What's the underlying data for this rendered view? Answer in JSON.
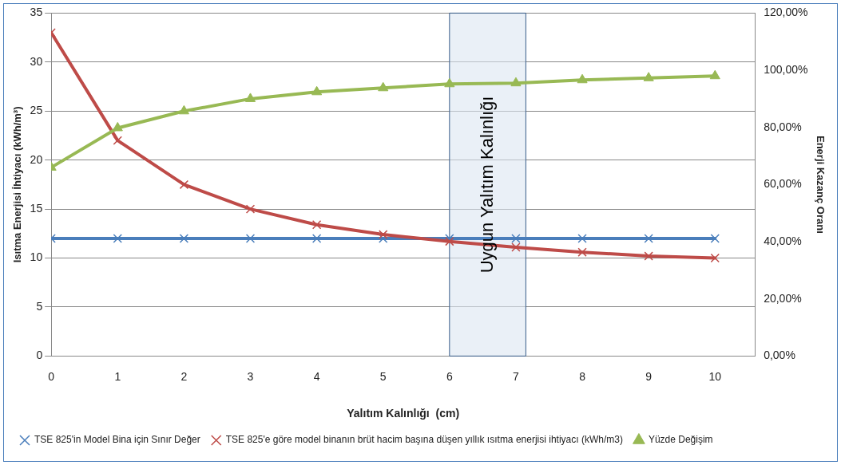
{
  "chart_data": {
    "type": "line",
    "xlabel": "Yalıtım Kalınlığı  (cm)",
    "ylabel": "Isıtma Enerjisi İhtiyacı (kWh/m³)",
    "y2label": "Enerji Kazanç Oranı",
    "x": [
      0,
      1,
      2,
      3,
      4,
      5,
      6,
      7,
      8,
      9,
      10
    ],
    "xlim": [
      0,
      10.6
    ],
    "xticks": [
      0,
      1,
      2,
      3,
      4,
      5,
      6,
      7,
      8,
      9,
      10
    ],
    "ylim": [
      0,
      35
    ],
    "yticks": [
      0,
      5,
      10,
      15,
      20,
      25,
      30,
      35
    ],
    "y2lim": [
      0,
      120
    ],
    "y2ticks": [
      {
        "value": 0,
        "label": "0,00%"
      },
      {
        "value": 20,
        "label": "20,00%"
      },
      {
        "value": 40,
        "label": "40,00%"
      },
      {
        "value": 60,
        "label": "60,00%"
      },
      {
        "value": 80,
        "label": "80,00%"
      },
      {
        "value": 100,
        "label": "100,00%"
      },
      {
        "value": 120,
        "label": "120,00%"
      }
    ],
    "series": [
      {
        "name": "TSE 825'in Model Bina için Sınır Değer",
        "color": "#4a7ebb",
        "marker": "cross",
        "values": [
          12,
          12,
          12,
          12,
          12,
          12,
          12,
          12,
          12,
          12,
          12
        ]
      },
      {
        "name": "TSE 825'e göre model binanın brüt hacim başına düşen yıllık ısıtma enerjisi ihtiyacı (kWh/m3)",
        "color": "#be4b48",
        "marker": "cross",
        "values": [
          33,
          22,
          17.5,
          15,
          13.4,
          12.4,
          11.7,
          11.1,
          10.6,
          10.2,
          10.0
        ]
      },
      {
        "name": "Yüzde Değişim",
        "color": "#98b954",
        "marker": "triangle",
        "axis": "y2",
        "values": [
          66,
          79.8,
          85.7,
          90,
          92.4,
          93.8,
          95.2,
          95.5,
          96.6,
          97.3,
          98
        ]
      }
    ],
    "bands": [
      {
        "axis": "x",
        "from": 6,
        "to": 7.15,
        "label": "Uygun Yalıtım Kalınlığı",
        "color": "#dce6f2"
      }
    ],
    "grid": "y",
    "legend": "bottom",
    "line_style": "solid"
  }
}
